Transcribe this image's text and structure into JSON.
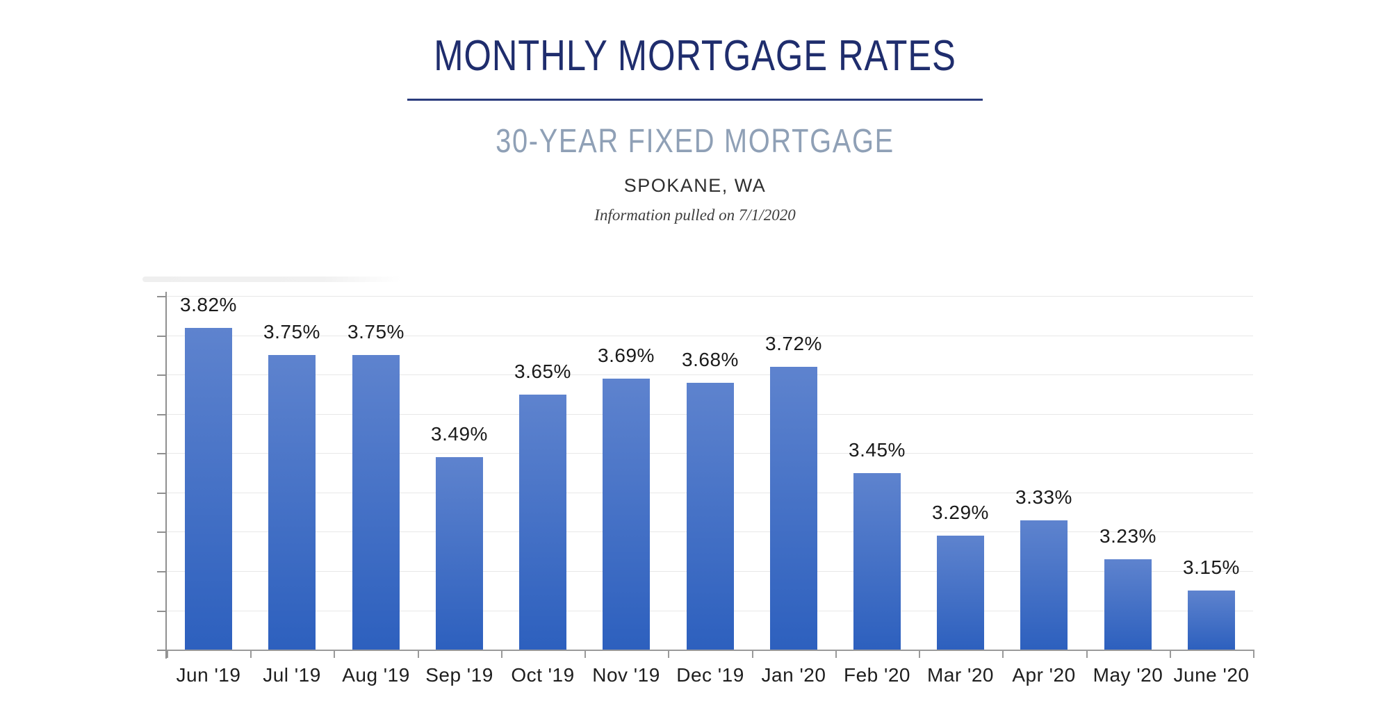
{
  "colors": {
    "title_navy": "#1f2d6d",
    "underline_blue": "#2b3c7d",
    "subtitle_gray_blue": "#8fa0b6",
    "location_dark": "#2e2e2e",
    "bar_gradient_top": "#5e83ce",
    "bar_gradient_bottom": "#2d60be",
    "axis_gray": "#9a9a9a",
    "gridline_gray": "#e8e8e8",
    "data_label_dark": "#1a1a1a"
  },
  "chart_data": {
    "type": "bar",
    "title": "MONTHLY MORTGAGE RATES",
    "subtitle": "30-YEAR FIXED MORTGAGE",
    "region": "SPOKANE, WA",
    "note": "Information pulled on 7/1/2020",
    "categories": [
      "Jun '19",
      "Jul '19",
      "Aug '19",
      "Sep '19",
      "Oct '19",
      "Nov '19",
      "Dec '19",
      "Jan '20",
      "Feb '20",
      "Mar '20",
      "Apr '20",
      "May '20",
      "June '20"
    ],
    "values": [
      3.82,
      3.75,
      3.75,
      3.49,
      3.65,
      3.69,
      3.68,
      3.72,
      3.45,
      3.29,
      3.33,
      3.23,
      3.15
    ],
    "value_labels": [
      "3.82%",
      "3.75%",
      "3.75%",
      "3.49%",
      "3.65%",
      "3.69%",
      "3.68%",
      "3.72%",
      "3.45%",
      "3.29%",
      "3.33%",
      "3.23%",
      "3.15%"
    ],
    "xlabel": "",
    "ylabel": "",
    "ylim": [
      3.0,
      3.9
    ],
    "grid_step": 0.1,
    "y_tick_labels": "none",
    "legend_position": "none",
    "grid": true
  }
}
